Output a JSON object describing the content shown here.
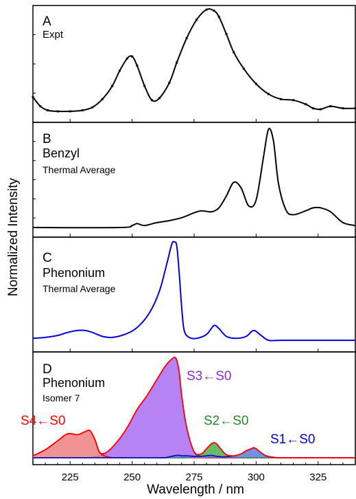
{
  "figure": {
    "ylabel": "Normalized Intensity",
    "xlabel": "Wavelength / nm",
    "xlim": [
      210,
      340
    ],
    "xticks": [
      225,
      250,
      275,
      300,
      325
    ]
  },
  "chart_data": [
    {
      "type": "line",
      "panel": "A",
      "label": "Expt",
      "color": "#000000",
      "markers": true,
      "x": [
        210,
        213,
        216,
        220,
        225,
        230,
        234,
        238,
        242,
        245,
        248,
        250,
        252,
        255,
        258,
        261,
        265,
        268,
        272,
        276,
        280,
        283,
        285,
        288,
        291,
        295,
        300,
        305,
        310,
        315,
        320,
        323,
        326,
        330,
        335,
        340
      ],
      "y": [
        0.14,
        0.05,
        0.01,
        0.0,
        0.0,
        0.01,
        0.04,
        0.12,
        0.25,
        0.4,
        0.52,
        0.54,
        0.45,
        0.25,
        0.11,
        0.13,
        0.28,
        0.48,
        0.72,
        0.9,
        1.0,
        0.99,
        0.93,
        0.76,
        0.58,
        0.42,
        0.27,
        0.17,
        0.12,
        0.11,
        0.07,
        0.03,
        0.02,
        0.05,
        0.03,
        0.03
      ]
    },
    {
      "type": "line",
      "panel": "B",
      "label": "Benzyl",
      "sublabel": "Thermal Average",
      "color": "#000000",
      "x": [
        210,
        245,
        250,
        252,
        255,
        260,
        265,
        270,
        275,
        278,
        282,
        285,
        288,
        291,
        294,
        297,
        300,
        303,
        305,
        307,
        309,
        312,
        315,
        320,
        323,
        326,
        330,
        335,
        340
      ],
      "y": [
        0.0,
        0.0,
        0.02,
        0.04,
        0.02,
        0.05,
        0.07,
        0.1,
        0.15,
        0.17,
        0.16,
        0.2,
        0.32,
        0.46,
        0.4,
        0.22,
        0.28,
        0.72,
        1.0,
        0.88,
        0.45,
        0.18,
        0.13,
        0.17,
        0.2,
        0.2,
        0.16,
        0.05,
        0.02
      ]
    },
    {
      "type": "line",
      "panel": "C",
      "label": "Phenonium",
      "sublabel": "Thermal Average",
      "color": "#0000dd",
      "x": [
        210,
        215,
        220,
        224,
        228,
        231,
        234,
        238,
        242,
        247,
        252,
        257,
        261,
        264,
        266,
        267,
        268,
        269,
        270,
        271,
        273,
        276,
        280,
        283,
        285,
        288,
        292,
        296,
        299,
        302,
        305,
        310,
        320,
        330,
        340
      ],
      "y": [
        0.04,
        0.05,
        0.07,
        0.1,
        0.12,
        0.12,
        0.1,
        0.06,
        0.05,
        0.08,
        0.15,
        0.3,
        0.52,
        0.8,
        1.0,
        1.02,
        0.98,
        0.7,
        0.35,
        0.12,
        0.05,
        0.04,
        0.08,
        0.17,
        0.14,
        0.06,
        0.04,
        0.06,
        0.12,
        0.07,
        0.02,
        0.02,
        0.02,
        0.02,
        0.02
      ]
    },
    {
      "type": "area",
      "panel": "D",
      "label": "Phenonium",
      "sublabel": "Isomer 7",
      "x": [
        210,
        215,
        220,
        224,
        228,
        231,
        233,
        235,
        237,
        240,
        244,
        248,
        252,
        256,
        260,
        263,
        265,
        267,
        268,
        269,
        270,
        272,
        275,
        278,
        280,
        282,
        283,
        284,
        286,
        288,
        291,
        294,
        296,
        298,
        299,
        300,
        302,
        304,
        307,
        310,
        320,
        330,
        340
      ],
      "series": [
        {
          "name": "S4←S0",
          "color": "#ff0000",
          "fill": "#f08080",
          "values": [
            0.02,
            0.08,
            0.17,
            0.24,
            0.23,
            0.26,
            0.27,
            0.18,
            0.05,
            0.01,
            0,
            0,
            0,
            0,
            0,
            0,
            0,
            0,
            0,
            0,
            0,
            0,
            0,
            0,
            0,
            0,
            0,
            0,
            0,
            0,
            0,
            0,
            0,
            0,
            0,
            0,
            0,
            0,
            0,
            0,
            0,
            0,
            0
          ]
        },
        {
          "name": "S3←S0",
          "color": "#8a2be2",
          "fill": "#a96cf2",
          "values": [
            0,
            0,
            0,
            0,
            0,
            0,
            0,
            0.01,
            0.02,
            0.06,
            0.16,
            0.3,
            0.48,
            0.62,
            0.78,
            0.9,
            0.96,
            1.0,
            0.97,
            0.85,
            0.62,
            0.3,
            0.06,
            0.01,
            0,
            0,
            0,
            0,
            0,
            0,
            0,
            0,
            0,
            0,
            0,
            0,
            0,
            0,
            0,
            0,
            0,
            0,
            0
          ]
        },
        {
          "name": "S2←S0",
          "color": "#228b22",
          "fill": "#4faf4f",
          "values": [
            0,
            0,
            0,
            0,
            0,
            0,
            0,
            0,
            0,
            0,
            0,
            0,
            0,
            0,
            0,
            0,
            0,
            0,
            0,
            0,
            0,
            0,
            0.01,
            0.04,
            0.09,
            0.14,
            0.15,
            0.14,
            0.08,
            0.03,
            0.01,
            0,
            0,
            0,
            0,
            0,
            0,
            0,
            0,
            0,
            0,
            0,
            0
          ]
        },
        {
          "name": "S1←S0",
          "color": "#0000cd",
          "fill": "#5a7fd8",
          "values": [
            0,
            0,
            0,
            0,
            0,
            0,
            0,
            0,
            0,
            0,
            0,
            0,
            0,
            0,
            0,
            0,
            0.01,
            0.02,
            0.025,
            0.025,
            0.02,
            0.02,
            0.015,
            0.015,
            0.02,
            0.025,
            0.02,
            0.015,
            0.01,
            0.01,
            0.02,
            0.04,
            0.07,
            0.09,
            0.1,
            0.09,
            0.05,
            0.02,
            0.005,
            0,
            0,
            0,
            0
          ]
        }
      ]
    }
  ]
}
